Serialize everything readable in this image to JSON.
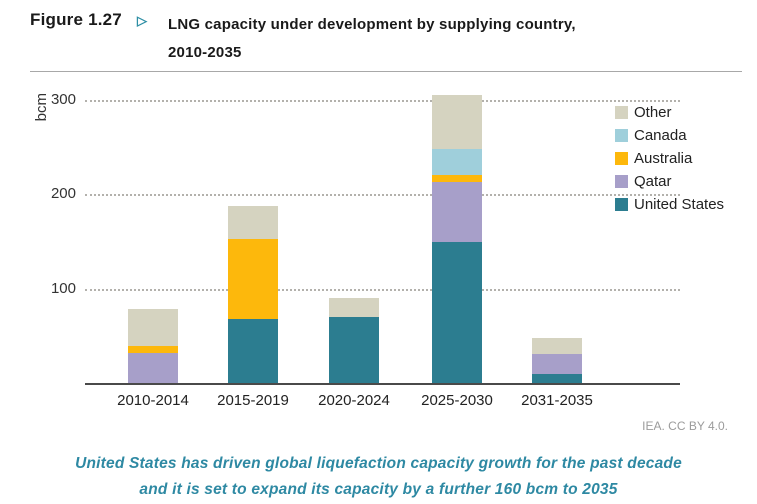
{
  "figure": {
    "label": "Figure 1.27",
    "arrow_icon": "▷",
    "title_line1": "LNG capacity under development by supplying country,",
    "title_line2": "2010-2035"
  },
  "chart_data": {
    "type": "bar",
    "stacked": true,
    "title": "LNG capacity under development by supplying country, 2010-2035",
    "xlabel": "",
    "ylabel": "bcm",
    "unit": "bcm",
    "ylim": [
      0,
      321
    ],
    "yticks": [
      100,
      200,
      300
    ],
    "grid": "horizontal dotted",
    "legend_position": "right",
    "categories": [
      "2010-2014",
      "2015-2019",
      "2020-2024",
      "2025-2030",
      "2031-2035"
    ],
    "series": [
      {
        "name": "United States",
        "color": "#2c7d90",
        "values": [
          0,
          68,
          70,
          150,
          10
        ]
      },
      {
        "name": "Qatar",
        "color": "#a79fc9",
        "values": [
          32,
          0,
          0,
          63,
          21
        ]
      },
      {
        "name": "Australia",
        "color": "#fdb80c",
        "values": [
          7,
          85,
          0,
          8,
          0
        ]
      },
      {
        "name": "Canada",
        "color": "#9fcfdb",
        "values": [
          0,
          0,
          0,
          27,
          0
        ]
      },
      {
        "name": "Other",
        "color": "#d5d3c0",
        "values": [
          40,
          35,
          20,
          57,
          17
        ]
      }
    ],
    "legend_order": [
      "Other",
      "Canada",
      "Australia",
      "Qatar",
      "United States"
    ],
    "totals": [
      79,
      188,
      90,
      305,
      48
    ]
  },
  "attribution": "IEA. CC BY 4.0.",
  "caption": {
    "line1": "United States has driven global liquefaction capacity growth for the past decade",
    "line2": "and it is set to expand its capacity by a further 160 bcm to 2035"
  },
  "colors": {
    "accent_teal": "#2e8fa5",
    "caption_teal": "#2e89a3",
    "axis_line": "#4a4a4a",
    "gridline": "#b3b1ac"
  }
}
